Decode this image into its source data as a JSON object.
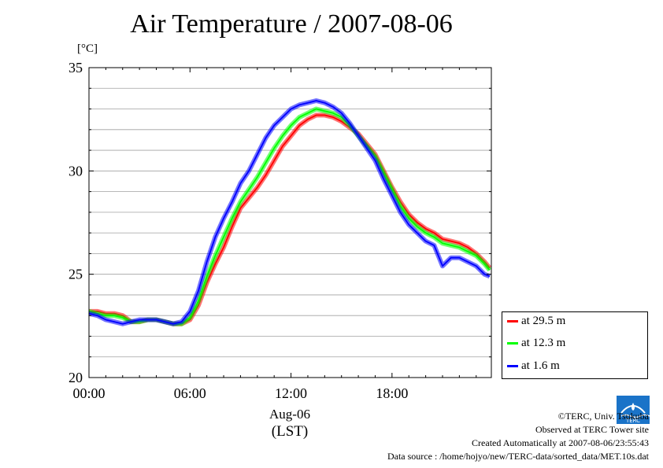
{
  "chart_data": {
    "type": "line",
    "title": "Air Temperature / 2007-08-06",
    "ylabel_unit": "[°C]",
    "xlabel_date": "Aug-06",
    "xlabel_tz": "(LST)",
    "x_ticks": [
      "00:00",
      "06:00",
      "12:00",
      "18:00"
    ],
    "y_ticks": [
      "20",
      "25",
      "30",
      "35"
    ],
    "xlim_hours": [
      0,
      23.9
    ],
    "ylim": [
      20,
      35
    ],
    "grid": true,
    "legend_position": "bottom-right, outside",
    "x_hours": [
      0,
      0.5,
      1,
      1.5,
      2,
      2.5,
      3,
      3.5,
      4,
      4.5,
      5,
      5.5,
      6,
      6.5,
      7,
      7.5,
      8,
      8.5,
      9,
      9.5,
      10,
      10.5,
      11,
      11.5,
      12,
      12.5,
      13,
      13.5,
      14,
      14.5,
      15,
      15.5,
      16,
      16.5,
      17,
      17.5,
      18,
      18.5,
      19,
      19.5,
      20,
      20.5,
      21,
      21.5,
      22,
      22.5,
      23,
      23.5,
      23.8
    ],
    "series": [
      {
        "name": "at 29.5 m",
        "color": "#ff0000",
        "values": [
          23.2,
          23.2,
          23.1,
          23.1,
          23.0,
          22.7,
          22.7,
          22.8,
          22.8,
          22.7,
          22.6,
          22.6,
          22.8,
          23.5,
          24.6,
          25.5,
          26.3,
          27.3,
          28.2,
          28.7,
          29.2,
          29.8,
          30.5,
          31.2,
          31.7,
          32.2,
          32.5,
          32.7,
          32.7,
          32.6,
          32.4,
          32.1,
          31.8,
          31.3,
          30.8,
          30.0,
          29.2,
          28.5,
          27.9,
          27.5,
          27.2,
          27.0,
          26.7,
          26.6,
          26.5,
          26.3,
          26.0,
          25.6,
          25.3
        ]
      },
      {
        "name": "at 12.3 m",
        "color": "#00ff00",
        "values": [
          23.2,
          23.1,
          23.0,
          23.0,
          22.9,
          22.7,
          22.7,
          22.8,
          22.8,
          22.7,
          22.6,
          22.6,
          22.9,
          23.7,
          24.9,
          25.9,
          26.8,
          27.7,
          28.5,
          29.1,
          29.7,
          30.4,
          31.1,
          31.7,
          32.2,
          32.6,
          32.8,
          33.0,
          32.9,
          32.8,
          32.6,
          32.2,
          31.7,
          31.2,
          30.7,
          29.9,
          29.1,
          28.3,
          27.7,
          27.3,
          27.0,
          26.8,
          26.5,
          26.4,
          26.3,
          26.1,
          25.9,
          25.5,
          25.2
        ]
      },
      {
        "name": "at 1.6 m",
        "color": "#0000ff",
        "values": [
          23.1,
          23.0,
          22.8,
          22.7,
          22.6,
          22.7,
          22.8,
          22.8,
          22.8,
          22.7,
          22.6,
          22.7,
          23.2,
          24.2,
          25.6,
          26.8,
          27.7,
          28.5,
          29.4,
          30.0,
          30.8,
          31.6,
          32.2,
          32.6,
          33.0,
          33.2,
          33.3,
          33.4,
          33.3,
          33.1,
          32.8,
          32.3,
          31.7,
          31.1,
          30.5,
          29.6,
          28.8,
          28.0,
          27.4,
          27.0,
          26.6,
          26.4,
          25.4,
          25.8,
          25.8,
          25.6,
          25.4,
          25.0,
          24.9
        ]
      }
    ]
  },
  "footer": {
    "copyright": "©TERC, Univ. Tsukuba",
    "observed": "Observed at TERC Tower site",
    "created": "Created Automatically at 2007-08-06/23:55:43",
    "source": "Data source : /home/hojyo/new/TERC-data/sorted_data/MET.10s.dat"
  },
  "logo_text": "TERC"
}
